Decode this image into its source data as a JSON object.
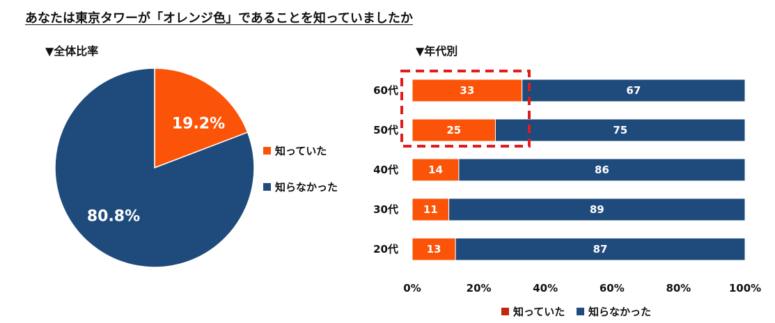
{
  "title": "あなたは東京タワーが「オレンジ色」であることを知っていましたか",
  "pie_heading": "▼全体比率",
  "bar_heading": "▼年代別",
  "colors": {
    "knew": "#fb5408",
    "didnt_know": "#1f4a7c",
    "highlight": "#e21b1b",
    "legend_knew_bar": "#c0280f"
  },
  "chart_data": [
    {
      "type": "pie",
      "categories": [
        "知っていた",
        "知らなかった"
      ],
      "values": [
        19.2,
        80.8
      ],
      "labels": [
        "19.2%",
        "80.8%"
      ],
      "legend": [
        "知っていた",
        "知らなかった"
      ],
      "legend_position": "right"
    },
    {
      "type": "bar",
      "orientation": "horizontal",
      "stacked": true,
      "categories": [
        "60代",
        "50代",
        "40代",
        "30代",
        "20代"
      ],
      "series": [
        {
          "name": "知っていた",
          "values": [
            33,
            25,
            14,
            11,
            13
          ]
        },
        {
          "name": "知らなかった",
          "values": [
            67,
            75,
            86,
            89,
            87
          ]
        }
      ],
      "xlim": [
        0,
        100
      ],
      "xticks": [
        "0%",
        "20%",
        "40%",
        "60%",
        "80%",
        "100%"
      ],
      "legend": [
        "知っていた",
        "知らなかった"
      ],
      "legend_position": "bottom",
      "highlight_categories": [
        "60代",
        "50代"
      ]
    }
  ]
}
